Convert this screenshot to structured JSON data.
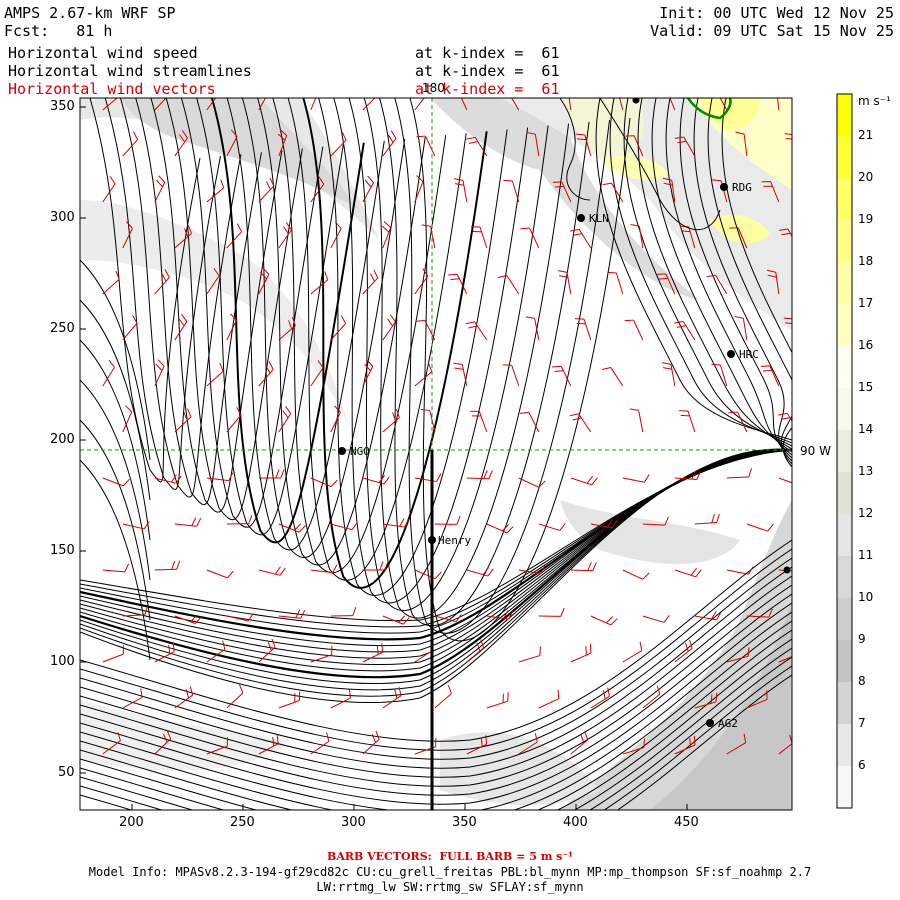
{
  "header": {
    "model_title": "AMPS 2.67-km WRF SP",
    "forecast": "Fcst:   81 h",
    "init": "Init: 00 UTC Wed 12 Nov 25",
    "valid": "Valid: 09 UTC Sat 15 Nov 25",
    "fields": [
      {
        "label": "Horizontal wind speed",
        "level": "at k-index =  61",
        "color": "#000000"
      },
      {
        "label": "Horizontal wind streamlines",
        "level": "at k-index =  61",
        "color": "#000000"
      },
      {
        "label": "Horizontal wind vectors",
        "level": "at k-index =  61",
        "color": "#d40000"
      }
    ]
  },
  "map": {
    "x_ticks": [
      "200",
      "250",
      "300",
      "350",
      "400",
      "450"
    ],
    "y_ticks": [
      "350",
      "300",
      "250",
      "200",
      "150",
      "100",
      "50"
    ],
    "meridian_label": "180",
    "parallel_label": "90 W",
    "stations": [
      {
        "id": "RDG",
        "label": "RDG"
      },
      {
        "id": "KLN",
        "label": "KLN"
      },
      {
        "id": "HRC",
        "label": "HRC"
      },
      {
        "id": "NGO",
        "label": "NGO"
      },
      {
        "id": "Henry",
        "label": "Henry"
      },
      {
        "id": "AG2",
        "label": "AG2"
      }
    ]
  },
  "colorbar": {
    "unit": "m s⁻¹",
    "labels": [
      "21",
      "20",
      "19",
      "18",
      "17",
      "16",
      "15",
      "14",
      "13",
      "12",
      "11",
      "10",
      "9",
      "8",
      "7",
      "6"
    ],
    "colors": [
      "#ffff00",
      "#ffff33",
      "#ffff66",
      "#ffff88",
      "#ffffaa",
      "#ffffc4",
      "#fffff0",
      "#f8f8ee",
      "#ececdc",
      "#e2e2d2",
      "#e4e4e4",
      "#d8d8d8",
      "#cccccc",
      "#c3c3c3",
      "#d4d4d4",
      "#e8e8e8",
      "#f7f7f7"
    ]
  },
  "footer": {
    "barb_note": "BARB VECTORS:  FULL BARB = 5 m s⁻¹",
    "model_info_1": "Model Info: MPASv8.2.3-194-gf29cd82c CU:cu_grell_freitas PBL:bl_mynn MP:mp_thompson SF:sf_noahmp 2.7",
    "model_info_2": "LW:rrtmg_lw SW:rrtmg_sw SFLAY:sf_mynn"
  },
  "style": {
    "barb_color": "#d40000",
    "coast_color": "#008800",
    "grid_color": "#2a8a2a"
  }
}
